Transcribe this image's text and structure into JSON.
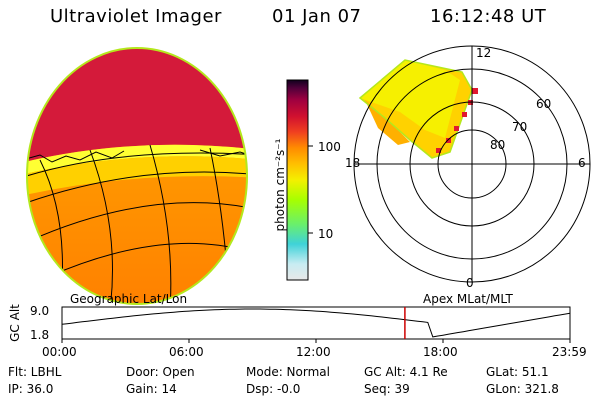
{
  "header": {
    "instrument": "Ultraviolet Imager",
    "date": "01 Jan 07",
    "time": "16:12:48 UT"
  },
  "colorbar": {
    "unit_label": "photon cm⁻²s⁻¹",
    "tick_100": "100",
    "tick_10": "10",
    "colors": [
      "#e8e8e8",
      "#c8ecf2",
      "#3fd2d8",
      "#6af06a",
      "#a6ff00",
      "#f4f000",
      "#ffc000",
      "#ff8c00",
      "#f04020",
      "#d01030",
      "#a00040",
      "#50003a",
      "#10001e"
    ]
  },
  "polar_plot": {
    "mlt_top": "12",
    "mlt_left": "18",
    "mlt_right": "6",
    "mlt_bottom": "0",
    "lat_60": "60",
    "lat_70": "70",
    "lat_80": "80"
  },
  "labels": {
    "geographic": "Geographic Lat/Lon",
    "apex": "Apex MLat/MLT"
  },
  "altitude_plot": {
    "axis_label": "GC Alt",
    "y_max": "9.0",
    "y_min": "1.8",
    "x_ticks": [
      "00:00",
      "06:00",
      "12:00",
      "18:00",
      "23:59"
    ],
    "current_marker_hours": 16.2,
    "marker_color": "#cc0000"
  },
  "info": {
    "flt": "Flt: LBHL",
    "ip": "IP: 36.0",
    "door": "Door: Open",
    "gain": "Gain: 14",
    "mode": "Mode: Normal",
    "dsp": "Dsp:   -0.0",
    "gc_alt": "GC Alt: 4.1 Re",
    "seq": "Seq: 39",
    "glat": "GLat:  51.1",
    "glon": "GLon: 321.8"
  }
}
